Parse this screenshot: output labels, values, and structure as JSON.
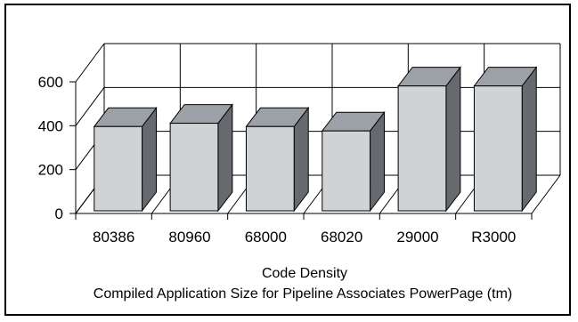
{
  "chart_data": {
    "type": "bar",
    "style": "3d",
    "categories": [
      "80386",
      "80960",
      "68000",
      "68020",
      "29000",
      "R3000"
    ],
    "values": [
      380,
      395,
      380,
      360,
      565,
      565
    ],
    "ylim": [
      0,
      600
    ],
    "yticks": [
      "0",
      "200",
      "400",
      "600"
    ],
    "title": "Code Density",
    "subtitle": "Compiled Application Size for Pipeline Associates PowerPage (tm)",
    "grid": true,
    "legend": "none",
    "colors": {
      "bar_front": "#cfd3d6",
      "bar_side": "#666a6e",
      "bar_top": "#9ba1a6",
      "outline": "#000000"
    }
  }
}
